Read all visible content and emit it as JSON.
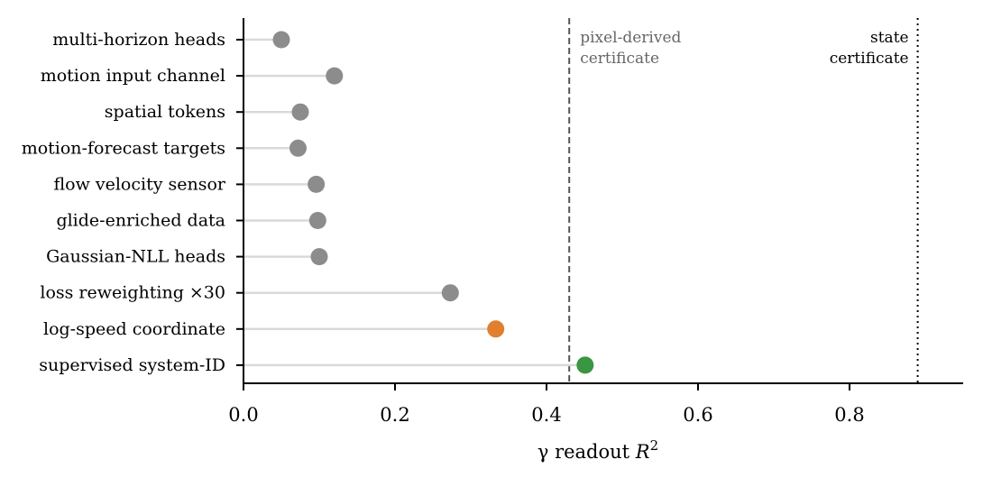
{
  "chart_data": {
    "type": "lollipop",
    "categories": [
      "multi-horizon heads",
      "motion input channel",
      "spatial tokens",
      "motion-forecast targets",
      "flow velocity sensor",
      "glide-enriched data",
      "Gaussian-NLL heads",
      "loss reweighting ×30",
      "log-speed coordinate",
      "supervised system-ID"
    ],
    "values": [
      0.05,
      0.12,
      0.075,
      0.072,
      0.096,
      0.098,
      0.1,
      0.273,
      0.333,
      0.451
    ],
    "colors": [
      "#8c8c8c",
      "#8c8c8c",
      "#8c8c8c",
      "#8c8c8c",
      "#8c8c8c",
      "#8c8c8c",
      "#8c8c8c",
      "#8c8c8c",
      "#e07f2e",
      "#3a9640"
    ],
    "xlabel_prefix": "γ readout ",
    "xlabel_var": "R",
    "xlabel_sup": "2",
    "xlim": [
      0.0,
      0.95
    ],
    "xticks": [
      "0.0",
      "0.2",
      "0.4",
      "0.6",
      "0.8"
    ],
    "reference_lines": [
      {
        "value": 0.43,
        "style": "dashed",
        "color": "#555555",
        "label_lines": [
          "pixel-derived",
          "certificate"
        ],
        "label_side": "right"
      },
      {
        "value": 0.89,
        "style": "dotted",
        "color": "#000000",
        "label_lines": [
          "state",
          "certificate"
        ],
        "label_side": "left"
      }
    ],
    "grid": false
  }
}
